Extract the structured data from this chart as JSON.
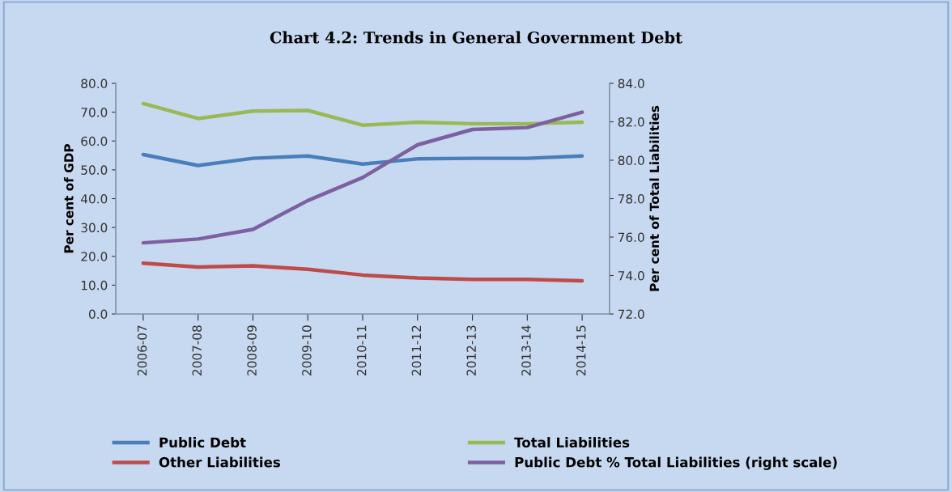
{
  "chart_data": {
    "type": "line",
    "title": "Chart 4.2: Trends in General Government Debt",
    "ylabel": "Per cent of GDP",
    "y2label": "Per cent of Total Liabilities",
    "categories": [
      "2006-07",
      "2007-08",
      "2008-09",
      "2009-10",
      "2010-11",
      "2011-12",
      "2012-13",
      "2013-14",
      "2014-15"
    ],
    "series": [
      {
        "name": "Public Debt",
        "color": "#4a7ebb",
        "values": [
          55.3,
          51.5,
          54.0,
          54.8,
          52.0,
          53.8,
          54.0,
          54.0,
          54.8
        ]
      },
      {
        "name": "Other Liabilities",
        "color": "#be4b48",
        "values": [
          17.6,
          16.3,
          16.7,
          15.5,
          13.5,
          12.5,
          12.0,
          12.0,
          11.5
        ]
      },
      {
        "name": "Total Liabilities",
        "color": "#98b954",
        "values": [
          73.0,
          67.8,
          70.4,
          70.6,
          65.5,
          66.5,
          66.0,
          66.0,
          66.5
        ]
      },
      {
        "name": "Public Debt % Total Liabilities (right scale)",
        "color": "#7d60a0",
        "axis": "y2",
        "values": [
          75.7,
          75.9,
          76.4,
          77.9,
          79.1,
          80.8,
          81.6,
          81.7,
          82.5
        ]
      }
    ],
    "ylim": [
      0,
      80
    ],
    "yticks": [
      {
        "value": 0,
        "label": "0.0"
      },
      {
        "value": 10,
        "label": "10.0"
      },
      {
        "value": 20,
        "label": "20.0"
      },
      {
        "value": 30,
        "label": "30.0"
      },
      {
        "value": 40,
        "label": "40.0"
      },
      {
        "value": 50,
        "label": "50.0"
      },
      {
        "value": 60,
        "label": "60.0"
      },
      {
        "value": 70,
        "label": "70.0"
      },
      {
        "value": 80,
        "label": "80.0"
      }
    ],
    "y2lim": [
      72,
      84
    ],
    "y2ticks": [
      {
        "value": 72,
        "label": "72.0"
      },
      {
        "value": 74,
        "label": "74.0"
      },
      {
        "value": 76,
        "label": "76.0"
      },
      {
        "value": 78,
        "label": "78.0"
      },
      {
        "value": 80,
        "label": "80.0"
      },
      {
        "value": 82,
        "label": "82.0"
      },
      {
        "value": 84,
        "label": "84.0"
      }
    ],
    "grid": false,
    "legend": "bottom",
    "marker": "none",
    "line_style": "solid"
  }
}
